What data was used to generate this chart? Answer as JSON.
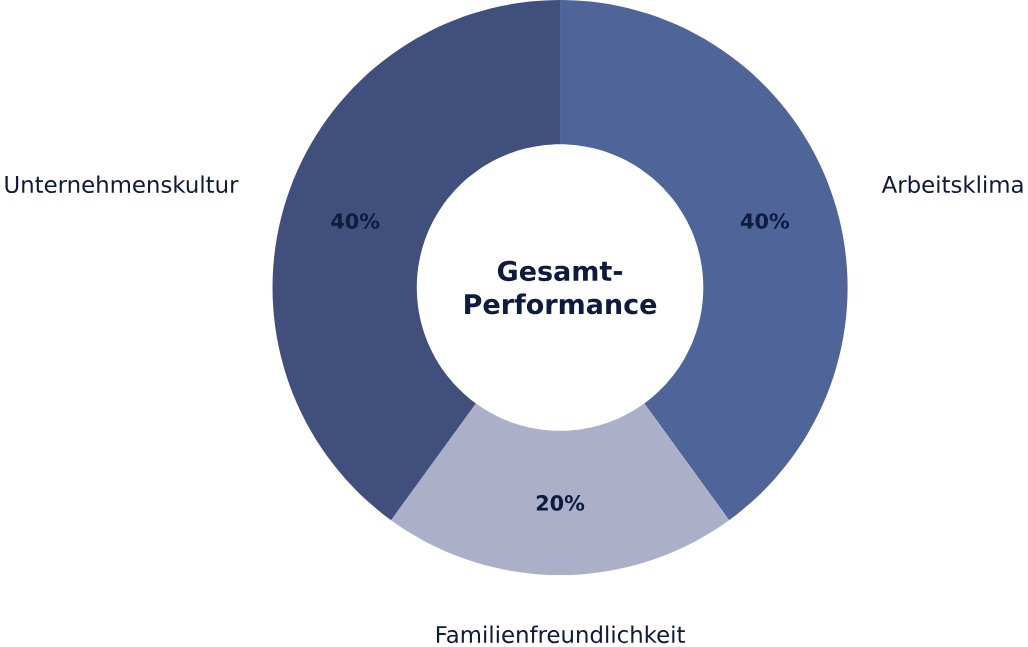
{
  "chart_data": {
    "type": "donut",
    "title": "Gesamt-Performance",
    "categories": [
      "Arbeitsklima",
      "Familienfreundlichkeit",
      "Unternehmenskultur"
    ],
    "values": [
      40,
      20,
      40
    ],
    "colors": [
      "#4f6499",
      "#acafc8",
      "#414f7d"
    ],
    "value_labels": [
      "40%",
      "20%",
      "40%"
    ]
  }
}
